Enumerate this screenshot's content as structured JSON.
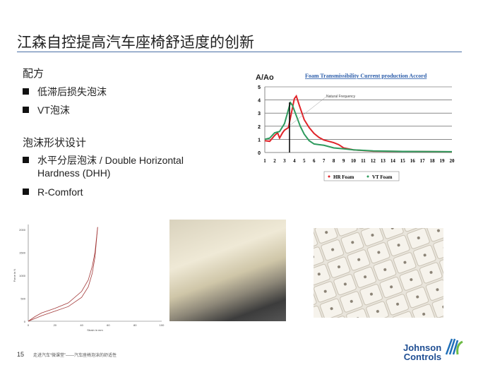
{
  "slide": {
    "title": "江森自控提高汽车座椅舒适度的创新",
    "section1": {
      "heading": "配方",
      "bullets": [
        "低滞后损失泡沫",
        "VT泡沫"
      ]
    },
    "section2": {
      "heading": "泡沫形状设计",
      "bullets": [
        "水平分层泡沫 / Double Horizontal",
        "Hardness (DHH)",
        "R-Comfort"
      ]
    },
    "footer": {
      "page": "15",
      "text": "走进汽车“微课堂”——汽车座椅泡沫的舒适性"
    },
    "logo": {
      "line1": "Johnson",
      "line2": "Controls"
    }
  },
  "chart_data": [
    {
      "type": "line",
      "title": "Foam Transmissibility Current production Accord",
      "ylabel": "A/Ao",
      "xlabel": "",
      "xlim": [
        1,
        20
      ],
      "ylim": [
        0,
        5
      ],
      "xticks": [
        "1",
        "2",
        "3",
        "4",
        "5",
        "6",
        "7",
        "8",
        "9",
        "10",
        "11",
        "12",
        "13",
        "14",
        "15",
        "16",
        "17",
        "18",
        "19",
        "20"
      ],
      "yticks": [
        "0",
        "1",
        "2",
        "3",
        "4",
        "5"
      ],
      "grid": "horizontal",
      "legend": "bottom",
      "annotation": "Natural Frequency",
      "series": [
        {
          "name": "HR Foam",
          "color": "#e0242a",
          "x": [
            1,
            1.5,
            2,
            2.3,
            2.5,
            2.8,
            3,
            3.4,
            3.7,
            4,
            4.2,
            4.5,
            5,
            5.5,
            6,
            6.5,
            7,
            8,
            8.5,
            9,
            10,
            12,
            15,
            20
          ],
          "y": [
            0.9,
            0.85,
            1.3,
            1.5,
            1.1,
            1.5,
            1.7,
            1.9,
            3.0,
            4.1,
            4.3,
            3.6,
            2.5,
            1.9,
            1.45,
            1.15,
            0.95,
            0.75,
            0.6,
            0.35,
            0.2,
            0.1,
            0.08,
            0.05
          ]
        },
        {
          "name": "VT Foam",
          "color": "#2e9b5e",
          "x": [
            1,
            1.5,
            2,
            2.5,
            3,
            3.3,
            3.6,
            3.8,
            4.2,
            4.6,
            5,
            5.5,
            6,
            6.5,
            7,
            8,
            9,
            10,
            12,
            15,
            20
          ],
          "y": [
            1.0,
            1.1,
            1.5,
            1.6,
            2.2,
            3.0,
            3.8,
            3.6,
            2.8,
            2.0,
            1.4,
            0.9,
            0.65,
            0.6,
            0.55,
            0.35,
            0.28,
            0.2,
            0.12,
            0.08,
            0.06
          ]
        }
      ]
    },
    {
      "type": "line",
      "xlabel": "Strain in mm",
      "ylabel": "Force in N",
      "xlim": [
        0,
        100
      ],
      "ylim": [
        0,
        2000
      ],
      "xticks": [
        "0",
        "20",
        "40",
        "60",
        "80",
        "100"
      ],
      "yticks": [
        "0",
        "500",
        "1000",
        "1500",
        "2000"
      ],
      "series": [
        {
          "color": "#a33a3a",
          "x": [
            0,
            5,
            10,
            20,
            30,
            40,
            45,
            48,
            50,
            52
          ],
          "y": [
            0,
            100,
            180,
            280,
            400,
            650,
            900,
            1200,
            1500,
            2050
          ]
        },
        {
          "color": "#a33a3a",
          "x": [
            0,
            5,
            10,
            20,
            30,
            40,
            45,
            48,
            50,
            52
          ],
          "y": [
            0,
            60,
            120,
            220,
            320,
            520,
            750,
            1050,
            1400,
            2050
          ]
        }
      ]
    }
  ]
}
